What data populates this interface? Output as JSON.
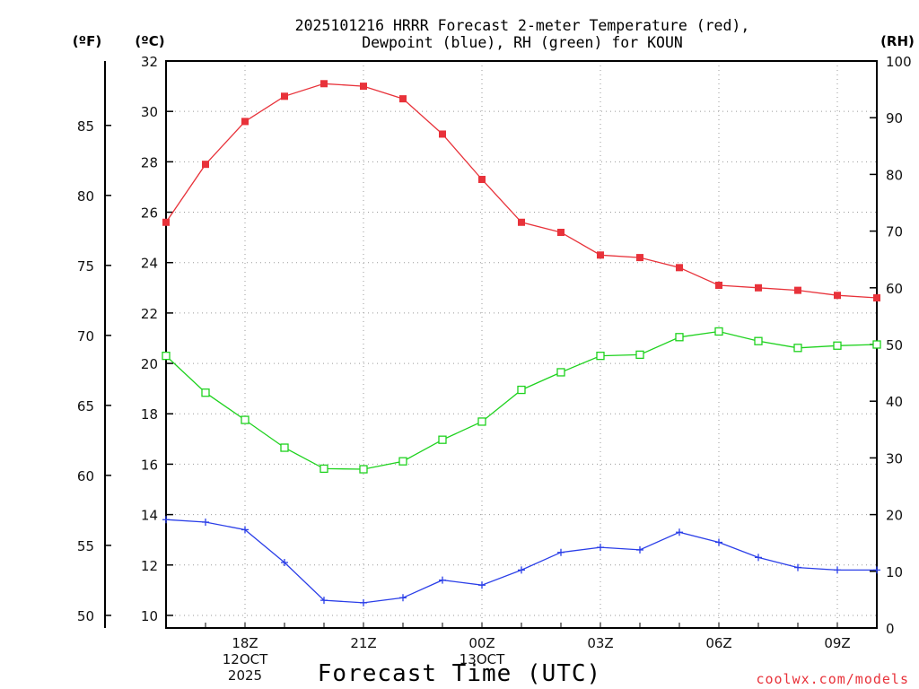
{
  "chart_data": {
    "type": "line",
    "title": [
      "2025101216 HRRR Forecast 2-meter Temperature (red),",
      "Dewpoint (blue), RH (green) for KOUN"
    ],
    "xlabel": "Forecast Time (UTC)",
    "credit": "coolwx.com/models",
    "units": {
      "f": "(ºF)",
      "c": "(ºC)",
      "rh": "(RH)"
    },
    "x_hours": [
      0,
      1,
      2,
      3,
      4,
      5,
      6,
      7,
      8,
      9,
      10,
      11,
      12,
      13,
      14,
      15,
      16,
      17,
      18
    ],
    "x_ticks": [
      {
        "hour": 2,
        "lines": [
          "18Z",
          "12OCT",
          "2025"
        ]
      },
      {
        "hour": 5,
        "lines": [
          "21Z"
        ]
      },
      {
        "hour": 8,
        "lines": [
          "00Z",
          "13OCT"
        ]
      },
      {
        "hour": 11,
        "lines": [
          "03Z"
        ]
      },
      {
        "hour": 14,
        "lines": [
          "06Z"
        ]
      },
      {
        "hour": 17,
        "lines": [
          "09Z"
        ]
      }
    ],
    "y_celsius": {
      "min": 9.5,
      "max": 32,
      "ticks": [
        10,
        12,
        14,
        16,
        18,
        20,
        22,
        24,
        26,
        28,
        30,
        32
      ]
    },
    "y_fahrenheit": {
      "ticks": [
        50,
        55,
        60,
        65,
        70,
        75,
        80,
        85
      ]
    },
    "y_rh": {
      "min": 0,
      "max": 100,
      "ticks": [
        0,
        10,
        20,
        30,
        40,
        50,
        60,
        70,
        80,
        90,
        100
      ]
    },
    "series": [
      {
        "name": "Temperature",
        "axis": "c",
        "color": "#e8323a",
        "marker": "filled-square",
        "values": [
          25.6,
          27.9,
          29.6,
          30.6,
          31.1,
          31.0,
          30.5,
          29.1,
          27.3,
          25.6,
          25.2,
          24.3,
          24.2,
          23.8,
          23.1,
          23.0,
          22.9,
          22.7,
          22.6
        ]
      },
      {
        "name": "Dewpoint",
        "axis": "c",
        "color": "#2a3ee8",
        "marker": "plus",
        "values": [
          13.8,
          13.7,
          13.4,
          12.1,
          10.6,
          10.5,
          10.7,
          11.4,
          11.2,
          11.8,
          12.5,
          12.7,
          12.6,
          13.3,
          12.9,
          12.3,
          11.9,
          11.8,
          11.8
        ]
      },
      {
        "name": "RH",
        "axis": "rh",
        "color": "#1ed21e",
        "marker": "open-square",
        "values": [
          48.0,
          41.5,
          36.7,
          31.8,
          28.1,
          28.0,
          29.4,
          33.2,
          36.4,
          42.0,
          45.1,
          48.0,
          48.2,
          51.3,
          52.3,
          50.6,
          49.4,
          49.8,
          50.0
        ]
      }
    ]
  }
}
